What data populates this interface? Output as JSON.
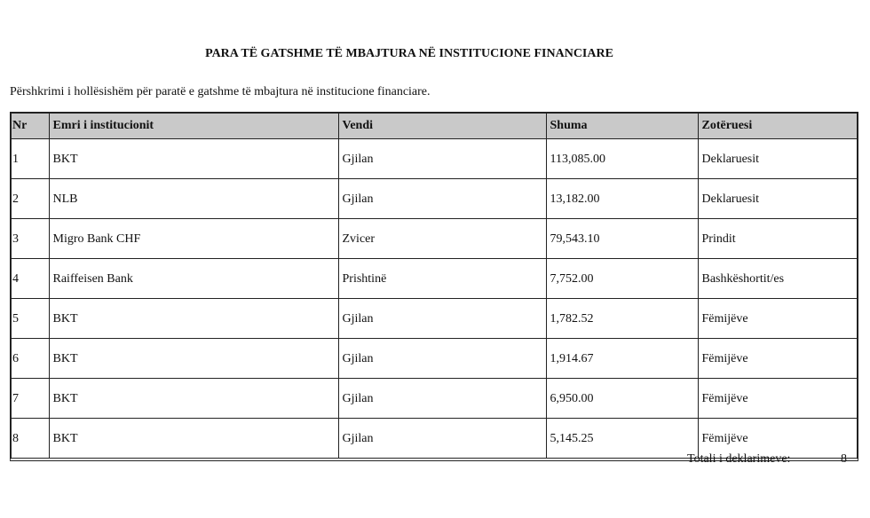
{
  "title": "PARA TË GATSHME TË MBAJTURA NË INSTITUCIONE FINANCIARE",
  "description": "Përshkrimi i hollësishëm për paratë e gatshme të mbajtura në institucione financiare.",
  "headers": [
    "Nr",
    "Emri i institucionit",
    "Vendi",
    "Shuma",
    "Zotëruesi"
  ],
  "rows": [
    [
      "1",
      "BKT",
      "Gjilan",
      "113,085.00",
      "Deklaruesit"
    ],
    [
      "2",
      "NLB",
      "Gjilan",
      "13,182.00",
      "Deklaruesit"
    ],
    [
      "3",
      "Migro Bank CHF",
      "Zvicer",
      "79,543.10",
      "Prindit"
    ],
    [
      "4",
      "Raiffeisen Bank",
      "Prishtinë",
      "7,752.00",
      "Bashkëshortit/es"
    ],
    [
      "5",
      "BKT",
      "Gjilan",
      "1,782.52",
      "Fëmijëve"
    ],
    [
      "6",
      "BKT",
      "Gjilan",
      "1,914.67",
      "Fëmijëve"
    ],
    [
      "7",
      "BKT",
      "Gjilan",
      "6,950.00",
      "Fëmijëve"
    ],
    [
      "8",
      "BKT",
      "Gjilan",
      "5,145.25",
      "Fëmijëve"
    ]
  ],
  "total_label": "Totali i deklarimeve:",
  "total_value": "8"
}
